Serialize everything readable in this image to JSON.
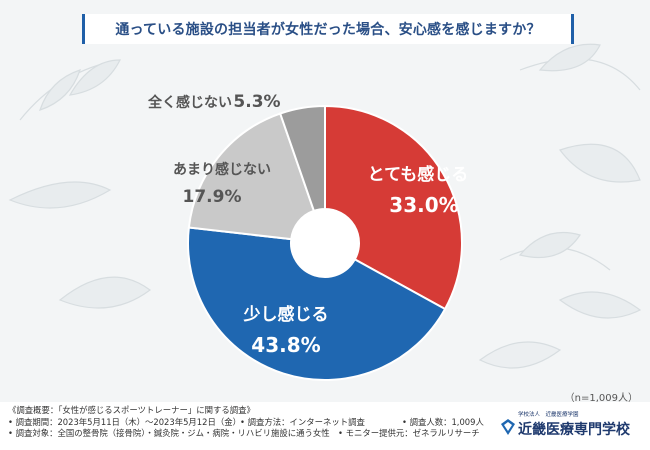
{
  "title": "通っている施設の担当者が女性だった場合、安心感を感じますか？",
  "sample_note": "（n=1,009人）",
  "chart_data": {
    "type": "pie",
    "style": "donut",
    "start": "top, clockwise",
    "slices": [
      {
        "label": "とても感じる",
        "value": 33.0,
        "display": "33.0%",
        "color": "#d63b36",
        "label_position": "inside"
      },
      {
        "label": "少し感じる",
        "value": 43.8,
        "display": "43.8%",
        "color": "#1f67b1",
        "label_position": "inside"
      },
      {
        "label": "あまり感じない",
        "value": 17.9,
        "display": "17.9%",
        "color": "#c9c9c9",
        "label_position": "outside"
      },
      {
        "label": "全く感じない",
        "value": 5.3,
        "display": "5.3%",
        "color": "#9c9c9c",
        "label_position": "outside"
      }
    ]
  },
  "survey": {
    "overview": "《調査概要：「女性が感じるスポーツトレーナー」に関する調査》",
    "period": "• 調査期間：2023年5月11日（木）～2023年5月12日（金）",
    "method": "• 調査方法：インターネット調査",
    "count": "• 調査人数：1,009人",
    "target": "• 調査対象：全国の整骨院（接骨院）・鍼灸院・ジム・病院・リハビリ施設に通う女性",
    "provider": "• モニター提供元：ゼネラルリサーチ"
  },
  "school": {
    "sub": "学校法人　近畿医療学園",
    "name": "近畿医療専門学校"
  }
}
